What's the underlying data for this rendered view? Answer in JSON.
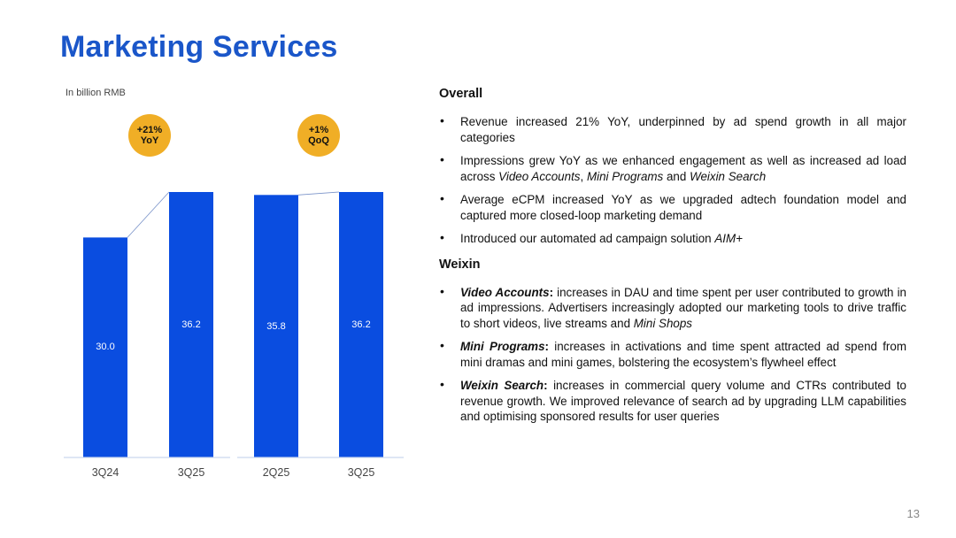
{
  "title": "Marketing Services",
  "unit_label": "In billion RMB",
  "page_number": "13",
  "colors": {
    "title": "#1a56c9",
    "bar": "#0a4de0",
    "badge": "#f0ae26"
  },
  "badges": [
    {
      "line1": "+21%",
      "line2": "YoY"
    },
    {
      "line1": "+1%",
      "line2": "QoQ"
    }
  ],
  "chart_data": [
    {
      "type": "bar",
      "categories": [
        "3Q24",
        "3Q25"
      ],
      "values": [
        30.0,
        36.2
      ],
      "labels": [
        "30.0",
        "36.2"
      ],
      "ylim": [
        0,
        36.2
      ]
    },
    {
      "type": "bar",
      "categories": [
        "2Q25",
        "3Q25"
      ],
      "values": [
        35.8,
        36.2
      ],
      "labels": [
        "35.8",
        "36.2"
      ],
      "ylim": [
        0,
        36.2
      ]
    }
  ],
  "overall": {
    "heading": "Overall",
    "b1": "Revenue increased 21% YoY, underpinned by ad spend growth in all major categories",
    "b2_pre": "Impressions grew YoY as we enhanced engagement as well as increased ad load across ",
    "b2_i1": "Video Accounts",
    "b2_mid1": ", ",
    "b2_i2": "Mini Programs",
    "b2_mid2": " and ",
    "b2_i3": "Weixin Search",
    "b3": "Average eCPM increased YoY as we upgraded adtech foundation model and captured more closed-loop marketing demand",
    "b4_pre": "Introduced our automated ad campaign solution ",
    "b4_i": "AIM+"
  },
  "weixin": {
    "heading": "Weixin",
    "va_label": "Video Accounts",
    "va_colon": ":",
    "va_text": " increases in DAU and time spent per user contributed to growth in ad impressions. Advertisers increasingly adopted our marketing tools to drive traffic to short videos, live streams and ",
    "va_i": "Mini Shops",
    "mp_label": "Mini Programs",
    "mp_colon": ":",
    "mp_text": " increases in activations and time spent attracted ad spend from mini dramas and mini games, bolstering the ecosystem’s flywheel effect",
    "ws_label": "Weixin Search",
    "ws_colon": ":",
    "ws_text": " increases in commercial query volume and CTRs contributed to revenue growth. We improved relevance of search ad by upgrading LLM capabilities and optimising sponsored results for user queries"
  }
}
